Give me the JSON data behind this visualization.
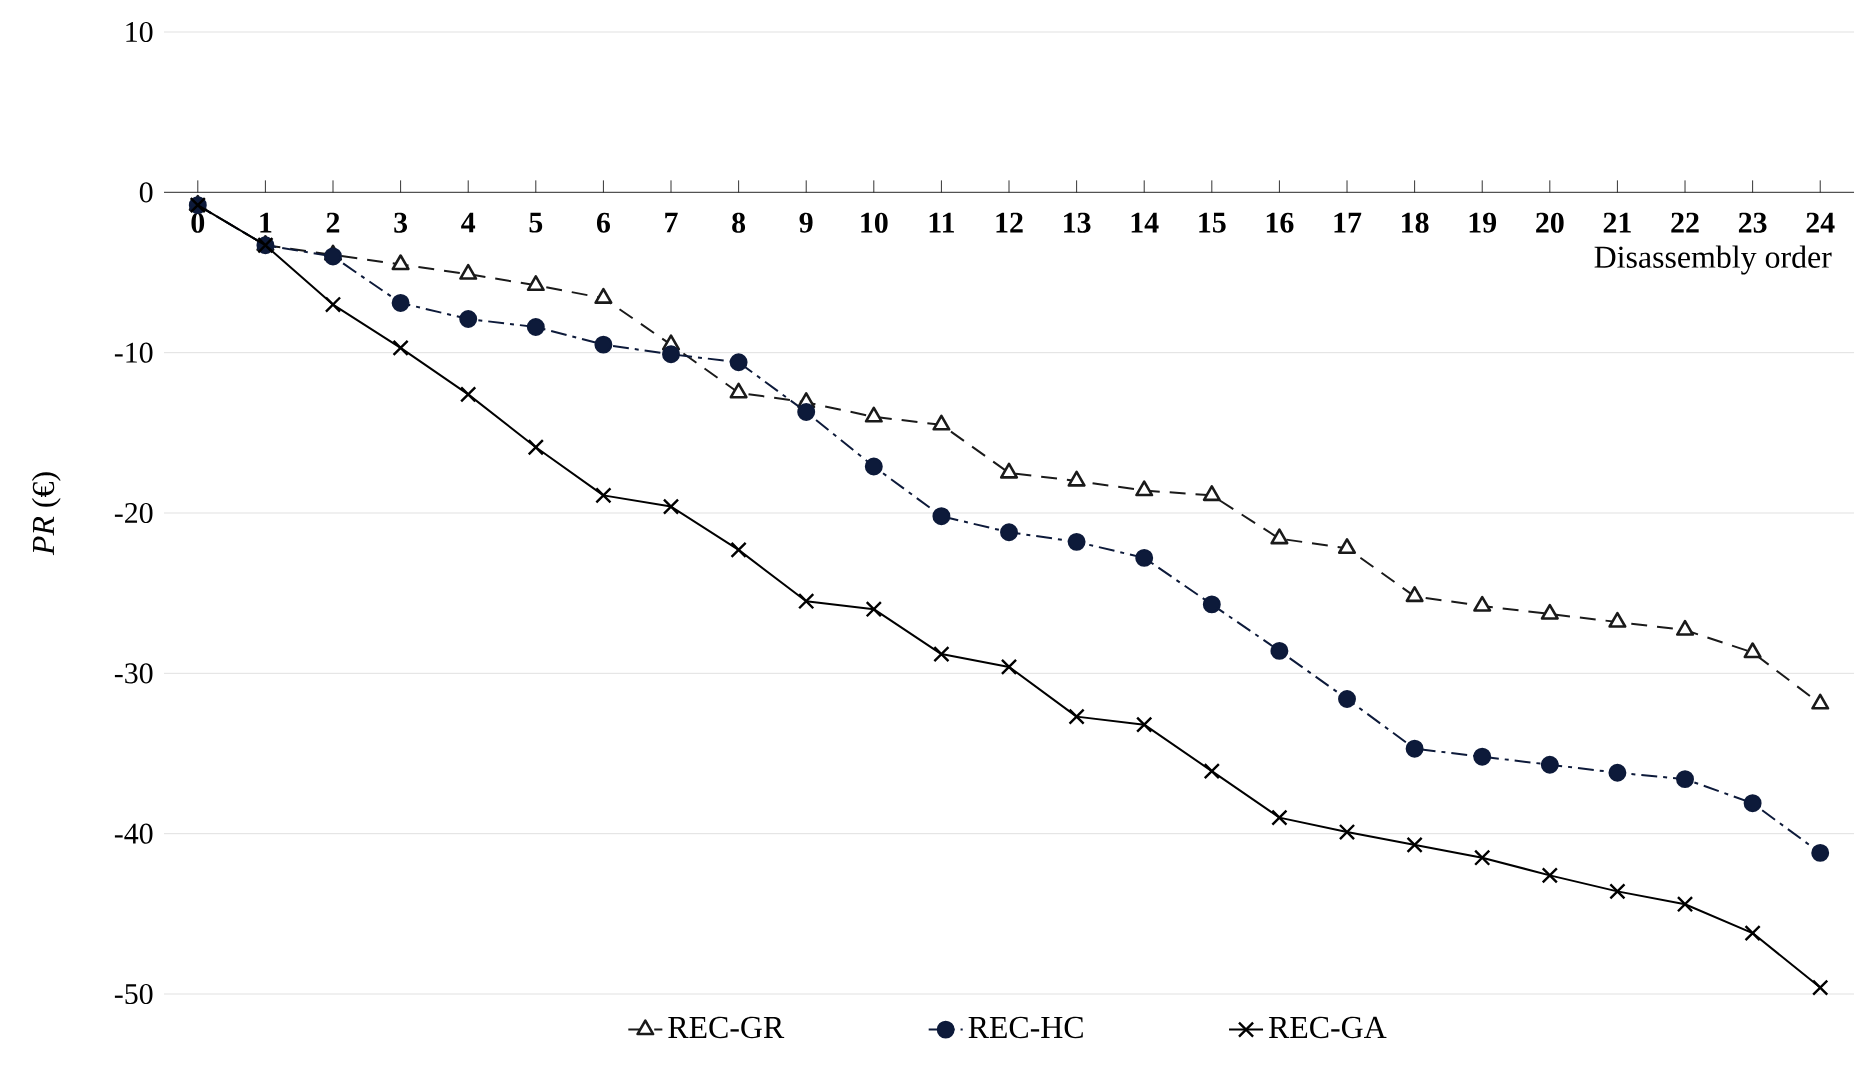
{
  "chart_data": {
    "type": "line",
    "xlabel": "Disassembly order",
    "ylabel": "*PR* (€)",
    "categories": [
      "0",
      "1",
      "2",
      "3",
      "4",
      "5",
      "6",
      "7",
      "8",
      "9",
      "10",
      "11",
      "12",
      "13",
      "14",
      "15",
      "16",
      "17",
      "18",
      "19",
      "20",
      "21",
      "22",
      "23",
      "24"
    ],
    "series": [
      {
        "name": "REC-GR",
        "color": "#1a1a1a",
        "marker": "triangle",
        "line_style": "dashed",
        "values": [
          -0.8,
          -3.3,
          -3.9,
          -4.5,
          -5.1,
          -5.8,
          -6.6,
          -9.5,
          -12.5,
          -13.1,
          -14.0,
          -14.5,
          -17.5,
          -18.0,
          -18.6,
          -18.9,
          -21.6,
          -22.2,
          -25.2,
          -25.8,
          -26.3,
          -26.8,
          -27.3,
          -28.7,
          -31.9
        ]
      },
      {
        "name": "REC-HC",
        "color": "#0d1a3a",
        "marker": "circle",
        "line_style": "dashdot",
        "values": [
          -0.8,
          -3.3,
          -4.0,
          -6.9,
          -7.9,
          -8.4,
          -9.5,
          -10.1,
          -10.6,
          -13.7,
          -17.1,
          -20.2,
          -21.2,
          -21.8,
          -22.8,
          -25.7,
          -28.6,
          -31.6,
          -34.7,
          -35.2,
          -35.7,
          -36.2,
          -36.6,
          -38.1,
          -41.2
        ]
      },
      {
        "name": "REC-GA",
        "color": "#000000",
        "marker": "cross",
        "line_style": "solid",
        "values": [
          -0.8,
          -3.3,
          -7.0,
          -9.7,
          -12.6,
          -15.9,
          -18.9,
          -19.6,
          -22.3,
          -25.5,
          -26.0,
          -28.8,
          -29.6,
          -32.7,
          -33.2,
          -36.1,
          -39.0,
          -39.9,
          -40.7,
          -41.5,
          -42.6,
          -43.6,
          -44.4,
          -46.2,
          -49.6
        ]
      }
    ],
    "ylim": [
      -50,
      10
    ],
    "yticks": [
      -50,
      -40,
      -30,
      -20,
      -10,
      0,
      10
    ],
    "grid": "y",
    "legend": "bottom"
  }
}
